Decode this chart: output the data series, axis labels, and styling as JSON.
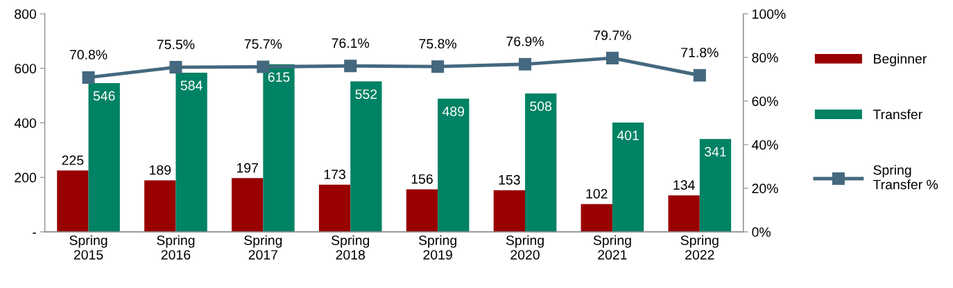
{
  "chart_data": {
    "type": "bar",
    "categories": [
      "Spring\n2015",
      "Spring\n2016",
      "Spring\n2017",
      "Spring\n2018",
      "Spring\n2019",
      "Spring\n2020",
      "Spring\n2021",
      "Spring\n2022"
    ],
    "series": [
      {
        "name": "Beginner",
        "color": "#990000",
        "values": [
          225,
          189,
          197,
          173,
          156,
          153,
          102,
          134
        ],
        "value_labels": [
          "225",
          "189",
          "197",
          "173",
          "156",
          "153",
          "102",
          "134"
        ]
      },
      {
        "name": "Transfer",
        "color": "#008264",
        "values": [
          546,
          584,
          615,
          552,
          489,
          508,
          401,
          341
        ],
        "value_labels": [
          "546",
          "584",
          "615",
          "552",
          "489",
          "508",
          "401",
          "341"
        ]
      },
      {
        "name": "Spring\nTransfer %",
        "type": "line",
        "axis": "y2",
        "color": "#44687f",
        "marker": "square",
        "values": [
          70.8,
          75.5,
          75.7,
          76.1,
          75.8,
          76.9,
          79.7,
          71.8
        ],
        "value_labels": [
          "70.8%",
          "75.5%",
          "75.7%",
          "76.1%",
          "75.8%",
          "76.9%",
          "79.7%",
          "71.8%"
        ]
      }
    ],
    "ylim": [
      0,
      800
    ],
    "yticks": [
      {
        "value": 0,
        "label": "-"
      },
      200,
      400,
      600,
      800
    ],
    "y2lim": [
      0,
      100
    ],
    "y2ticks": [
      {
        "value": 0,
        "label": "0%"
      },
      {
        "value": 20,
        "label": "20%"
      },
      {
        "value": 40,
        "label": "40%"
      },
      {
        "value": 60,
        "label": "60%"
      },
      {
        "value": 80,
        "label": "80%"
      },
      {
        "value": 100,
        "label": "100%"
      }
    ],
    "grid": false,
    "legend": "right",
    "line_style": "solid"
  }
}
